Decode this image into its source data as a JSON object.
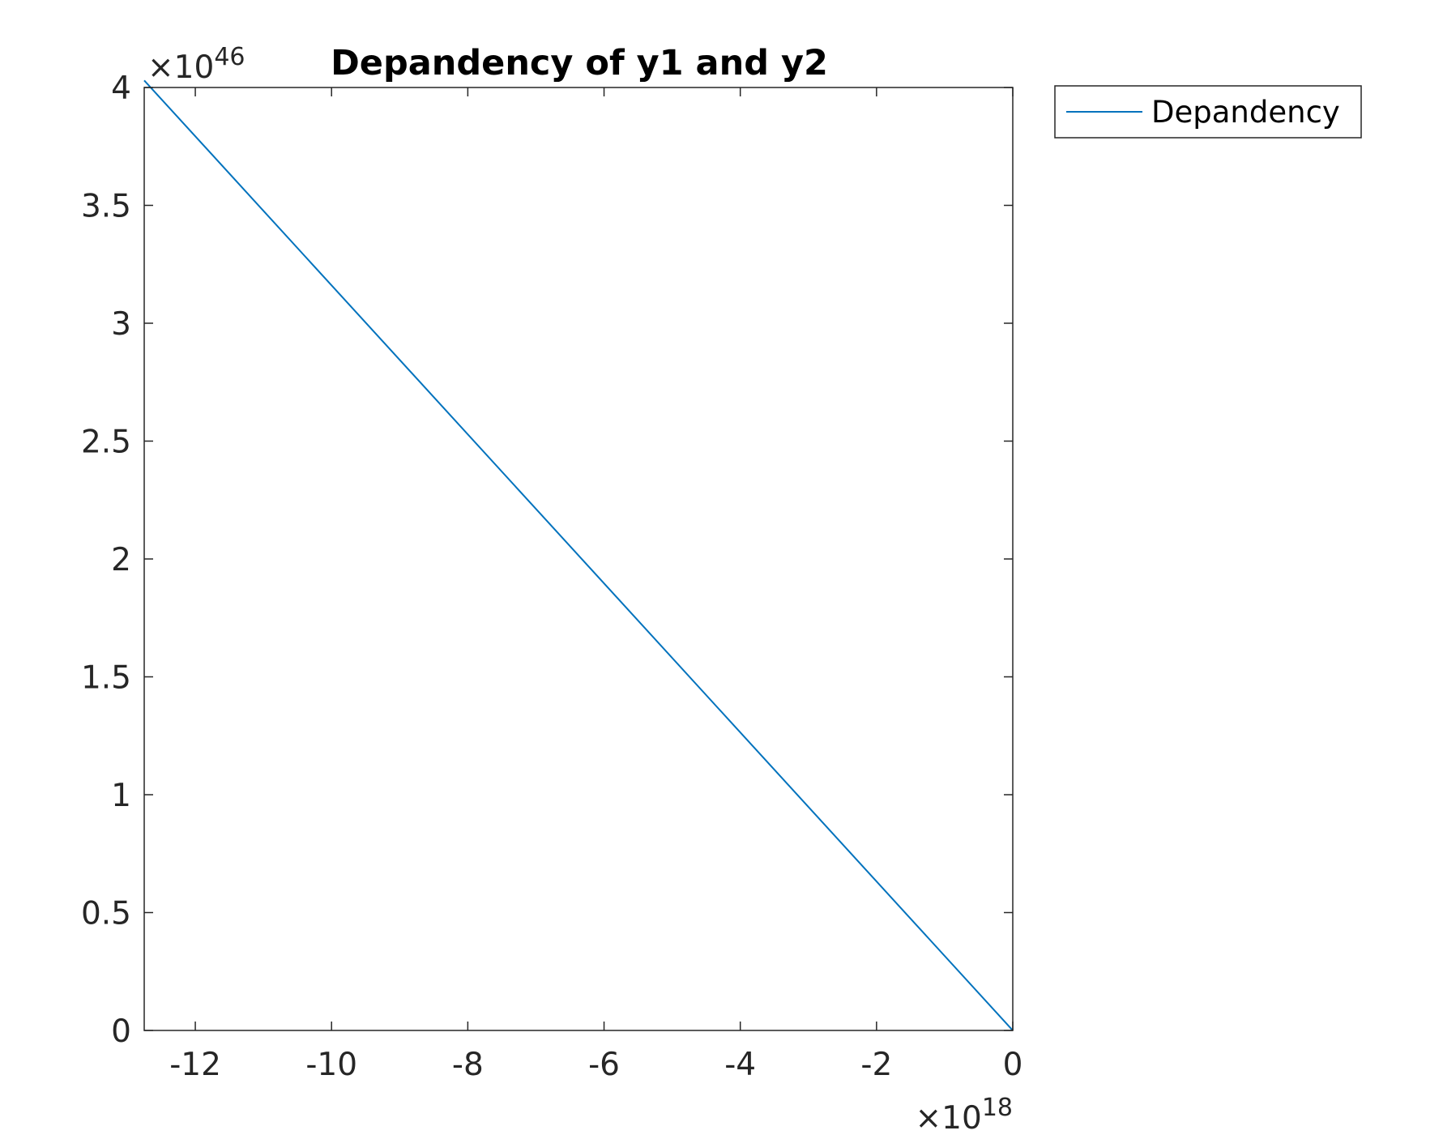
{
  "chart_data": {
    "type": "line",
    "title": "Depandency of y1 and y2",
    "xlabel": "",
    "ylabel": "",
    "x_exponent_base": "×10",
    "x_exponent": "18",
    "y_exponent_base": "×10",
    "y_exponent": "46",
    "xlim": [
      -12.75,
      0
    ],
    "ylim": [
      0,
      4
    ],
    "xticks": [
      -12,
      -10,
      -8,
      -6,
      -4,
      -2,
      0
    ],
    "xtick_labels": [
      "-12",
      "-10",
      "-8",
      "-6",
      "-4",
      "-2",
      "0"
    ],
    "yticks": [
      0,
      0.5,
      1,
      1.5,
      2,
      2.5,
      3,
      3.5,
      4
    ],
    "ytick_labels": [
      "0",
      "0.5",
      "1",
      "1.5",
      "2",
      "2.5",
      "3",
      "3.5",
      "4"
    ],
    "grid": false,
    "legend_position": "outside-top-right",
    "series": [
      {
        "name": "Depandency",
        "color": "#0072bd",
        "x": [
          -12.75,
          0
        ],
        "y": [
          4.03,
          0
        ]
      }
    ]
  }
}
